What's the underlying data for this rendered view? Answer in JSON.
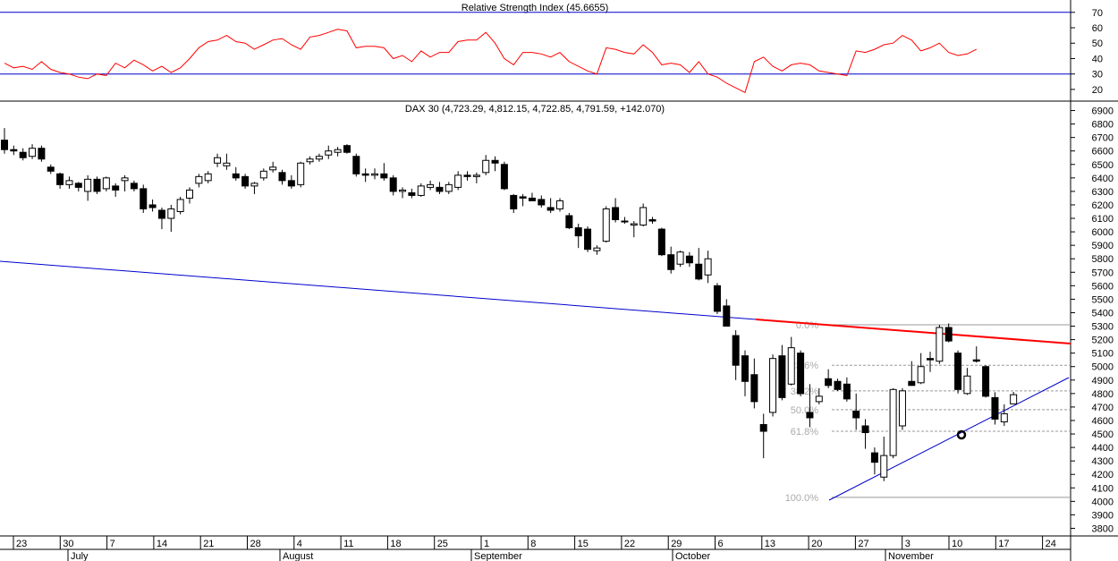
{
  "chart_data": [
    {
      "type": "line",
      "title": "Relative Strength Index (45.6655)",
      "ylim": [
        13,
        78
      ],
      "y_ticks": [
        20,
        30,
        40,
        50,
        60,
        70
      ],
      "reference_lines": [
        30,
        70
      ],
      "colors": {
        "line": "#ff0000",
        "reference": "#0000cc"
      },
      "series": [
        {
          "values": [
            37,
            34,
            35,
            33,
            38,
            33,
            31,
            30,
            28,
            27,
            30,
            29,
            37,
            34,
            39,
            36,
            32,
            35,
            31,
            34,
            40,
            47,
            51,
            52,
            55,
            51,
            50,
            46,
            49,
            52,
            53,
            49,
            46,
            54,
            55,
            57,
            59,
            58,
            47,
            48,
            48,
            47,
            40,
            42,
            38,
            45,
            41,
            44,
            44,
            51,
            52,
            52,
            57,
            50,
            40,
            36,
            44,
            44,
            43,
            41,
            44,
            38,
            35,
            32,
            30,
            47,
            46,
            44,
            43,
            49,
            44,
            36,
            37,
            36,
            31,
            38,
            30,
            28,
            24,
            21,
            18,
            38,
            41,
            35,
            32,
            36,
            37,
            36,
            32,
            31,
            30,
            29,
            45,
            44,
            46,
            49,
            50,
            55,
            52,
            45,
            47,
            50,
            44,
            42,
            43,
            46
          ]
        }
      ]
    },
    {
      "type": "candlestick",
      "title": "DAX 30 (4,723.29, 4,812.15, 4,722.85, 4,791.59, +142.070)",
      "ylim": [
        3750,
        6950
      ],
      "y_ticks": [
        3800,
        3900,
        4000,
        4100,
        4200,
        4300,
        4400,
        4500,
        4600,
        4700,
        4800,
        4900,
        5000,
        5100,
        5200,
        5300,
        5400,
        5500,
        5600,
        5700,
        5800,
        5900,
        6000,
        6100,
        6200,
        6300,
        6400,
        6500,
        6600,
        6700,
        6800,
        6900
      ],
      "x_ticks": [
        "23",
        "30",
        "7",
        "14",
        "21",
        "28",
        "4",
        "11",
        "18",
        "25",
        "1",
        "8",
        "15",
        "22",
        "29",
        "6",
        "13",
        "20",
        "27",
        "3",
        "10",
        "17",
        "24"
      ],
      "months": [
        "July",
        "August",
        "September",
        "October",
        "November"
      ],
      "colors": {
        "up": "#ffffff",
        "down": "#000000",
        "trendline": "#0000cc",
        "resistance": "#ff0000",
        "fib": "#999999"
      },
      "fibonacci": [
        {
          "label": "0.0%",
          "value": 5310
        },
        {
          "label": "23.6%",
          "value": 5010
        },
        {
          "label": "38.2%",
          "value": 4820
        },
        {
          "label": "50.0%",
          "value": 4680
        },
        {
          "label": "61.8%",
          "value": 4520
        },
        {
          "label": "100.0%",
          "value": 4030
        }
      ],
      "candles": [
        [
          6680,
          6770,
          6580,
          6610
        ],
        [
          6610,
          6640,
          6570,
          6600
        ],
        [
          6590,
          6620,
          6530,
          6550
        ],
        [
          6560,
          6650,
          6540,
          6620
        ],
        [
          6620,
          6640,
          6520,
          6540
        ],
        [
          6480,
          6500,
          6430,
          6450
        ],
        [
          6430,
          6440,
          6320,
          6350
        ],
        [
          6350,
          6410,
          6320,
          6380
        ],
        [
          6360,
          6370,
          6300,
          6330
        ],
        [
          6300,
          6420,
          6230,
          6390
        ],
        [
          6390,
          6410,
          6280,
          6300
        ],
        [
          6320,
          6410,
          6300,
          6400
        ],
        [
          6340,
          6360,
          6260,
          6310
        ],
        [
          6380,
          6420,
          6300,
          6400
        ],
        [
          6360,
          6380,
          6300,
          6320
        ],
        [
          6320,
          6350,
          6140,
          6170
        ],
        [
          6200,
          6240,
          6150,
          6180
        ],
        [
          6160,
          6180,
          6020,
          6100
        ],
        [
          6100,
          6200,
          6000,
          6170
        ],
        [
          6150,
          6260,
          6130,
          6240
        ],
        [
          6250,
          6330,
          6210,
          6310
        ],
        [
          6360,
          6430,
          6330,
          6410
        ],
        [
          6380,
          6450,
          6360,
          6430
        ],
        [
          6510,
          6580,
          6480,
          6550
        ],
        [
          6490,
          6580,
          6460,
          6510
        ],
        [
          6430,
          6480,
          6380,
          6400
        ],
        [
          6410,
          6430,
          6320,
          6340
        ],
        [
          6340,
          6370,
          6280,
          6360
        ],
        [
          6400,
          6470,
          6380,
          6450
        ],
        [
          6460,
          6520,
          6440,
          6480
        ],
        [
          6440,
          6460,
          6350,
          6380
        ],
        [
          6380,
          6420,
          6320,
          6340
        ],
        [
          6350,
          6520,
          6330,
          6510
        ],
        [
          6520,
          6560,
          6500,
          6540
        ],
        [
          6540,
          6580,
          6520,
          6560
        ],
        [
          6570,
          6640,
          6540,
          6600
        ],
        [
          6590,
          6630,
          6560,
          6610
        ],
        [
          6640,
          6650,
          6580,
          6590
        ],
        [
          6560,
          6580,
          6410,
          6430
        ],
        [
          6430,
          6470,
          6370,
          6420
        ],
        [
          6420,
          6470,
          6390,
          6430
        ],
        [
          6430,
          6510,
          6380,
          6400
        ],
        [
          6400,
          6420,
          6270,
          6300
        ],
        [
          6300,
          6330,
          6250,
          6310
        ],
        [
          6290,
          6320,
          6250,
          6270
        ],
        [
          6270,
          6360,
          6260,
          6340
        ],
        [
          6330,
          6380,
          6310,
          6350
        ],
        [
          6330,
          6370,
          6280,
          6300
        ],
        [
          6300,
          6370,
          6280,
          6350
        ],
        [
          6330,
          6450,
          6310,
          6420
        ],
        [
          6420,
          6450,
          6380,
          6410
        ],
        [
          6410,
          6440,
          6360,
          6420
        ],
        [
          6440,
          6570,
          6420,
          6530
        ],
        [
          6530,
          6560,
          6450,
          6510
        ],
        [
          6500,
          6520,
          6310,
          6320
        ],
        [
          6270,
          6280,
          6140,
          6170
        ],
        [
          6260,
          6280,
          6190,
          6250
        ],
        [
          6250,
          6290,
          6230,
          6230
        ],
        [
          6240,
          6270,
          6180,
          6200
        ],
        [
          6180,
          6250,
          6140,
          6160
        ],
        [
          6170,
          6250,
          6150,
          6230
        ],
        [
          6120,
          6140,
          6020,
          6030
        ],
        [
          6030,
          6060,
          5880,
          5970
        ],
        [
          6020,
          6040,
          5850,
          5870
        ],
        [
          5860,
          5900,
          5830,
          5880
        ],
        [
          5930,
          6190,
          5920,
          6170
        ],
        [
          6180,
          6250,
          6070,
          6090
        ],
        [
          6080,
          6110,
          6060,
          6080
        ],
        [
          6050,
          6080,
          5960,
          6060
        ],
        [
          6050,
          6210,
          6040,
          6180
        ],
        [
          6090,
          6110,
          6060,
          6080
        ],
        [
          6020,
          6030,
          5820,
          5830
        ],
        [
          5830,
          5890,
          5690,
          5720
        ],
        [
          5760,
          5860,
          5740,
          5850
        ],
        [
          5820,
          5850,
          5740,
          5770
        ],
        [
          5760,
          5880,
          5640,
          5650
        ],
        [
          5680,
          5860,
          5620,
          5800
        ],
        [
          5600,
          5620,
          5390,
          5410
        ],
        [
          5450,
          5500,
          5300,
          5300
        ],
        [
          5230,
          5270,
          4900,
          5010
        ],
        [
          5080,
          5120,
          4780,
          4890
        ],
        [
          4940,
          5060,
          4690,
          4740
        ],
        [
          4570,
          4650,
          4320,
          4520
        ],
        [
          4660,
          5090,
          4630,
          5060
        ],
        [
          5080,
          5160,
          4750,
          4770
        ],
        [
          4870,
          5220,
          4860,
          5140
        ],
        [
          5100,
          5120,
          4780,
          4800
        ],
        [
          4660,
          4870,
          4550,
          4620
        ],
        [
          4740,
          4840,
          4720,
          4780
        ],
        [
          4910,
          4980,
          4840,
          4860
        ],
        [
          4890,
          4910,
          4820,
          4830
        ],
        [
          4870,
          4920,
          4740,
          4760
        ],
        [
          4670,
          4800,
          4530,
          4620
        ],
        [
          4560,
          4610,
          4390,
          4510
        ],
        [
          4360,
          4400,
          4200,
          4290
        ],
        [
          4180,
          4480,
          4150,
          4340
        ],
        [
          4340,
          4840,
          4320,
          4830
        ],
        [
          4560,
          4840,
          4530,
          4820
        ],
        [
          4890,
          5040,
          4860,
          4860
        ],
        [
          4880,
          5100,
          4870,
          5000
        ],
        [
          5060,
          5110,
          4960,
          5050
        ],
        [
          5040,
          5310,
          5020,
          5290
        ],
        [
          5290,
          5320,
          5180,
          5190
        ],
        [
          5100,
          5120,
          4800,
          4830
        ],
        [
          4800,
          4990,
          4790,
          4930
        ],
        [
          5050,
          5150,
          5030,
          5040
        ],
        [
          5000,
          5010,
          4770,
          4780
        ],
        [
          4770,
          4810,
          4570,
          4610
        ],
        [
          4590,
          4720,
          4560,
          4650
        ],
        [
          4723.29,
          4812.15,
          4722.85,
          4791.59
        ]
      ]
    }
  ]
}
